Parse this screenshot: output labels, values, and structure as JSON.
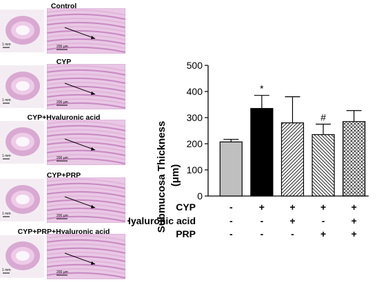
{
  "panels": [
    {
      "title": "Control",
      "scale_low": "1 mm",
      "scale_high": "200 μm"
    },
    {
      "title": "CYP",
      "scale_low": "1 mm",
      "scale_high": "200 μm"
    },
    {
      "title": "CYP+Hyaluronic acid",
      "scale_low": "1 mm",
      "scale_high": "200 μm"
    },
    {
      "title": "CYP+PRP",
      "scale_low": "1 mm",
      "scale_high": "200 μm"
    },
    {
      "title": "CYP+PRP+Hyaluronic acid",
      "scale_low": "1 mm",
      "scale_high": "200 μm"
    }
  ],
  "chart_data": {
    "type": "bar",
    "title": "",
    "ylabel_line1": "Submucosa Thickness",
    "ylabel_line2": "(μm)",
    "ylim": [
      0,
      500
    ],
    "yticks": [
      0,
      100,
      200,
      300,
      400,
      500
    ],
    "grid": false,
    "bars": [
      {
        "value": 207,
        "error": 10,
        "marker": "",
        "fill": "gray"
      },
      {
        "value": 335,
        "error": 50,
        "marker": "*",
        "fill": "black"
      },
      {
        "value": 280,
        "error": 100,
        "marker": "",
        "fill": "diagonal-lines"
      },
      {
        "value": 235,
        "error": 40,
        "marker": "#",
        "fill": "reverse-diagonal-lines"
      },
      {
        "value": 285,
        "error": 42,
        "marker": "",
        "fill": "crosshatch"
      }
    ],
    "colors": {
      "gray": "#bfbfbf",
      "black": "#000000"
    },
    "treatment_table": [
      {
        "label": "CYP",
        "values": [
          "-",
          "+",
          "+",
          "+",
          "+"
        ]
      },
      {
        "label": "Hyaluronic acid",
        "values": [
          "-",
          "-",
          "+",
          "-",
          "+"
        ]
      },
      {
        "label": "PRP",
        "values": [
          "-",
          "-",
          "-",
          "+",
          "+"
        ]
      }
    ]
  }
}
